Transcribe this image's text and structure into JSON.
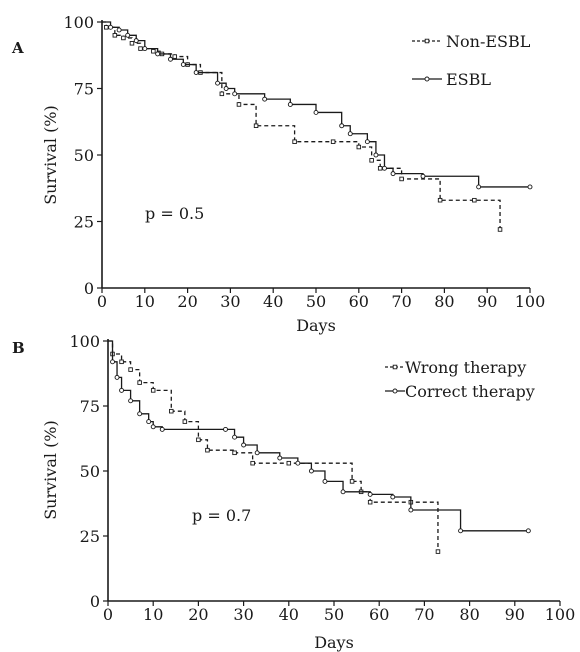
{
  "chart_data": [
    {
      "type": "line",
      "panel_label": "A",
      "xlabel": "Days",
      "ylabel": "Survival (%)",
      "xlim": [
        0,
        100
      ],
      "ylim": [
        0,
        100
      ],
      "x_ticks": [
        0,
        10,
        20,
        30,
        40,
        50,
        60,
        70,
        80,
        90,
        100
      ],
      "y_ticks": [
        0,
        25,
        50,
        75,
        100
      ],
      "annotation": "p = 0.5",
      "legend_position": "top-right",
      "grid": false,
      "series": [
        {
          "name": "Non-ESBL",
          "line_style": "dashed",
          "marker": "square",
          "x": [
            0,
            1,
            3,
            5,
            7,
            9,
            12,
            14,
            17,
            20,
            23,
            28,
            32,
            36,
            45,
            54,
            60,
            63,
            65,
            70,
            79,
            87,
            93
          ],
          "y": [
            100,
            98,
            95,
            94,
            92,
            90,
            89,
            88,
            87,
            84,
            81,
            73,
            69,
            61,
            55,
            55,
            53,
            48,
            45,
            41,
            33,
            33,
            22
          ]
        },
        {
          "name": "ESBL",
          "line_style": "solid",
          "marker": "circle",
          "x": [
            0,
            2,
            4,
            6,
            8,
            10,
            13,
            16,
            19,
            22,
            27,
            29,
            31,
            38,
            44,
            50,
            56,
            58,
            62,
            64,
            66,
            68,
            75,
            88,
            100
          ],
          "y": [
            100,
            98,
            97,
            95,
            93,
            90,
            88,
            86,
            84,
            81,
            77,
            75,
            73,
            71,
            69,
            66,
            61,
            58,
            55,
            50,
            45,
            43,
            42,
            38,
            38
          ]
        }
      ]
    },
    {
      "type": "line",
      "panel_label": "B",
      "xlabel": "Days",
      "ylabel": "Survival (%)",
      "xlim": [
        0,
        100
      ],
      "ylim": [
        0,
        100
      ],
      "x_ticks": [
        0,
        10,
        20,
        30,
        40,
        50,
        60,
        70,
        80,
        90,
        100
      ],
      "y_ticks": [
        0,
        25,
        50,
        75,
        100
      ],
      "annotation": "p = 0.7",
      "legend_position": "top-right",
      "grid": false,
      "series": [
        {
          "name": "Wrong therapy",
          "line_style": "dashed",
          "marker": "square",
          "x": [
            0,
            1,
            3,
            5,
            7,
            10,
            14,
            17,
            20,
            22,
            28,
            32,
            40,
            54,
            56,
            58,
            67,
            73
          ],
          "y": [
            100,
            95,
            92,
            89,
            84,
            81,
            73,
            69,
            62,
            58,
            57,
            53,
            53,
            46,
            42,
            38,
            38,
            19
          ]
        },
        {
          "name": "Correct therapy",
          "line_style": "solid",
          "marker": "circle",
          "x": [
            0,
            1,
            2,
            3,
            5,
            7,
            9,
            10,
            12,
            26,
            28,
            30,
            33,
            38,
            42,
            45,
            48,
            52,
            58,
            63,
            67,
            78,
            93
          ],
          "y": [
            100,
            92,
            86,
            81,
            77,
            72,
            69,
            67,
            66,
            66,
            63,
            60,
            57,
            55,
            53,
            50,
            46,
            42,
            41,
            40,
            35,
            27,
            27
          ]
        }
      ]
    }
  ]
}
